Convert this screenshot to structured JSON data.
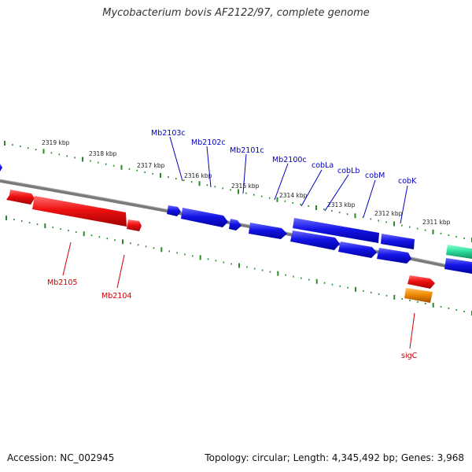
{
  "title": "Mycobacterium bovis AF2122/97, complete genome",
  "accession": "Accession: NC_002945",
  "summary": "Topology: circular; Length: 4,345,492 bp; Genes: 3,968",
  "colors": {
    "backbone": "#7a7a7a",
    "ticks": "#2a8a2a",
    "reverse_gene": "#1010e0",
    "forward_gene": "#e81010",
    "orange_gene": "#f08a00",
    "teal_gene": "#30e0a0",
    "reverse_label": "#0000c0",
    "forward_label": "#cc0000"
  },
  "scale_labels": [
    "2319 kbp",
    "2318 kbp",
    "2317 kbp",
    "2316 kbp",
    "2315 kbp",
    "2314 kbp",
    "2313 kbp",
    "2312 kbp",
    "2311 kbp"
  ],
  "gene_labels_reverse": [
    "Mb2103c",
    "Mb2102c",
    "Mb2101c",
    "Mb2100c",
    "cobLa",
    "cobLb",
    "cobM",
    "cobK"
  ],
  "gene_labels_forward": [
    "Mb2105",
    "Mb2104",
    "sigC"
  ]
}
